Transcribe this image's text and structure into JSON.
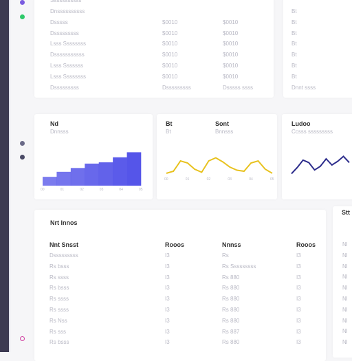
{
  "top_table": {
    "header": "Sssssssssss",
    "rows": [
      [
        "Dnssssssssss"
      ],
      [
        "Dsssss",
        "$0010",
        "$0010"
      ],
      [
        "Dsssssssss",
        "$0010",
        "$0010"
      ],
      [
        "Lsss Ssssssss",
        "$0010",
        "$0010"
      ],
      [
        "Dsssssssssss",
        "$0010",
        "$0010"
      ],
      [
        "Lsss Sssssss",
        "$0010",
        "$0010"
      ],
      [
        "Lsss Ssssssss",
        "$0010",
        "$0010"
      ],
      [
        "Dsssssssss",
        "Dsssssssss",
        "Dsssss ssss"
      ]
    ]
  },
  "top_side": {
    "rows": [
      "Bt",
      "Bt",
      "Bt",
      "Bt",
      "Bt",
      "Bt",
      "Bt",
      "Dnnt ssss"
    ]
  },
  "charts": [
    {
      "type": "bar",
      "titles": [
        "Nd"
      ],
      "subtitles": [
        "Dnnsss"
      ],
      "values": [
        14,
        22,
        28,
        35,
        37,
        45,
        53
      ],
      "ylim": [
        0,
        60
      ],
      "color": "#4f4fe8",
      "x_labels": [
        "00",
        "01",
        "02",
        "03",
        "04",
        "05"
      ]
    },
    {
      "type": "line",
      "titles": [
        "Bt",
        "Sont"
      ],
      "subtitles": [
        "Bt",
        "Bnnsss"
      ],
      "values": [
        2,
        4,
        14,
        12,
        6,
        3,
        14,
        17,
        13,
        8,
        5,
        4,
        12,
        14,
        6,
        2
      ],
      "ylim": [
        0,
        20
      ],
      "color": "#e8c21f",
      "x_labels": [
        "00",
        "01",
        "02",
        "03",
        "04",
        "05"
      ]
    },
    {
      "type": "line",
      "titles": [
        "Ludoo"
      ],
      "subtitles": [
        "Ccsss sssssssss"
      ],
      "values": [
        3,
        8,
        14,
        12,
        6,
        9,
        15,
        10,
        13,
        17,
        12
      ],
      "ylim": [
        0,
        20
      ],
      "color": "#2a2a8a"
    }
  ],
  "bottom_table": {
    "title": "Nrt lnnos",
    "header": [
      "Nnt Snsst",
      "Rooos",
      "Nnnss",
      "Rooos"
    ],
    "rows": [
      [
        "Dsssssssss",
        "I3",
        "Rs",
        "I3"
      ],
      [
        "Rs bsss",
        "I3",
        "Rs Sssssssss",
        "I3"
      ],
      [
        "Rs ssss",
        "I3",
        "Rs 880",
        "I3"
      ],
      [
        "Rs bsss",
        "I3",
        "Rs 880",
        "I3"
      ],
      [
        "Rs ssss",
        "I3",
        "Rs 880",
        "I3"
      ],
      [
        "Rs ssss",
        "I3",
        "Rs 880",
        "I3"
      ],
      [
        "Rs Nss",
        "I3",
        "Rs 880",
        "I3"
      ],
      [
        "Rs sss",
        "I3",
        "Rs 887",
        "I3"
      ],
      [
        "Rs bsss",
        "I3",
        "Rs 880",
        "I3"
      ]
    ]
  },
  "bottom_side": {
    "title": "Stt",
    "rows": [
      "Nl",
      "Nl",
      "Nl",
      "Nl",
      "Nl",
      "Nl",
      "Nl",
      "Nl",
      "Nl",
      "Nl"
    ]
  }
}
